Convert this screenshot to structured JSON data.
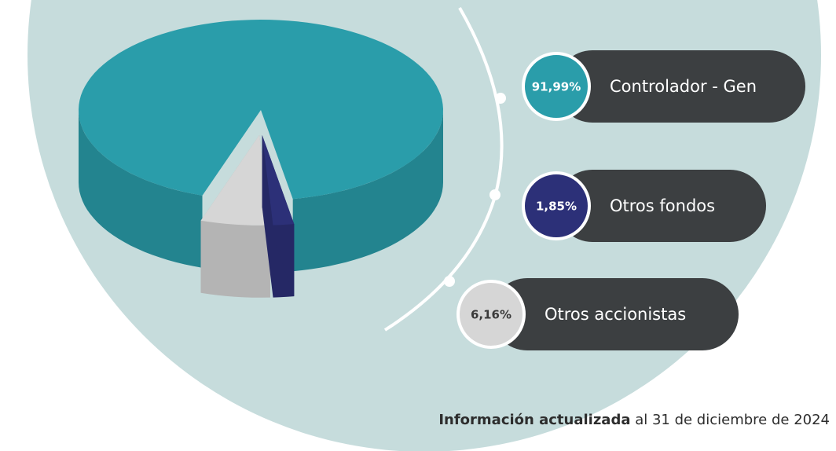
{
  "chart_data": {
    "type": "pie",
    "categories": [
      "Controlador - Gen",
      "Otros fondos",
      "Otros accionistas"
    ],
    "series": [
      {
        "values": [
          91.99,
          1.85,
          6.16
        ],
        "value_labels": [
          "91,99%",
          "1,85%",
          "6,16%"
        ],
        "colors": [
          "#2a9daa",
          "#2c3078",
          "#d6d6d6"
        ]
      }
    ],
    "note": {
      "bold": "Información actualizada",
      "rest": " al 31 de diciembre de 2024"
    }
  }
}
